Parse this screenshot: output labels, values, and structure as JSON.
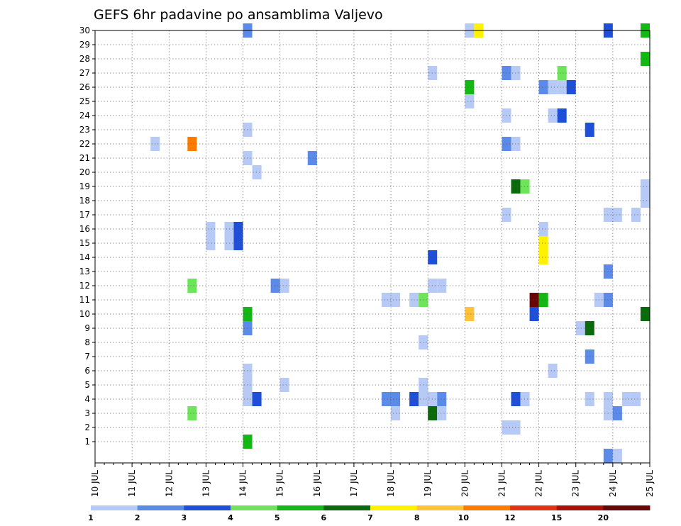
{
  "chart_data": {
    "type": "heatmap",
    "title": "GEFS 6hr padavine po ansamblima Valjevo",
    "x_ticks": [
      "10 JUL",
      "11 JUL",
      "12 JUL",
      "13 JUL",
      "14 JUL",
      "15 JUL",
      "16 JUL",
      "17 JUL",
      "18 JUL",
      "19 JUL",
      "20 JUL",
      "21 JUL",
      "22 JUL",
      "23 JUL",
      "24 JUL",
      "25 JUL"
    ],
    "x_range": [
      "10 JUL 00Z",
      "25 JUL 00Z"
    ],
    "x_step": "6hr",
    "y_ticks": [
      1,
      2,
      3,
      4,
      5,
      6,
      7,
      8,
      9,
      10,
      11,
      12,
      13,
      14,
      15,
      16,
      17,
      18,
      19,
      20,
      21,
      22,
      23,
      24,
      25,
      26,
      27,
      28,
      29,
      30
    ],
    "y_label": "",
    "ylim": [
      0,
      30
    ],
    "grid": "dotted",
    "colorbar": {
      "labels": [
        "1",
        "2",
        "3",
        "4",
        "5",
        "6",
        "7",
        "8",
        "10",
        "12",
        "15",
        "20"
      ],
      "colors": [
        "#b7c9f5",
        "#5c8ae8",
        "#1f4fd8",
        "#6ee45a",
        "#14b814",
        "#0b6a0b",
        "#fff200",
        "#ffc23a",
        "#ff7b00",
        "#e03510",
        "#a8120a",
        "#6a0606"
      ]
    },
    "cells": [
      {
        "t": 4.0,
        "m": 30,
        "c": 2
      },
      {
        "t": 10.0,
        "m": 30,
        "c": 1
      },
      {
        "t": 10.25,
        "m": 30,
        "c": 7
      },
      {
        "t": 13.75,
        "m": 30,
        "c": 3
      },
      {
        "t": 14.75,
        "m": 30,
        "c": 5
      },
      {
        "t": 14.75,
        "m": 28,
        "c": 5
      },
      {
        "t": 9.0,
        "m": 27,
        "c": 1
      },
      {
        "t": 11.0,
        "m": 27,
        "c": 2
      },
      {
        "t": 11.25,
        "m": 27,
        "c": 1
      },
      {
        "t": 12.5,
        "m": 27,
        "c": 4
      },
      {
        "t": 10.0,
        "m": 26,
        "c": 5
      },
      {
        "t": 12.0,
        "m": 26,
        "c": 2
      },
      {
        "t": 12.25,
        "m": 26,
        "c": 1
      },
      {
        "t": 12.5,
        "m": 26,
        "c": 1
      },
      {
        "t": 12.75,
        "m": 26,
        "c": 3
      },
      {
        "t": 10.0,
        "m": 25,
        "c": 1
      },
      {
        "t": 11.0,
        "m": 24,
        "c": 1
      },
      {
        "t": 12.25,
        "m": 24,
        "c": 1
      },
      {
        "t": 12.5,
        "m": 24,
        "c": 3
      },
      {
        "t": 4.0,
        "m": 23,
        "c": 1
      },
      {
        "t": 13.25,
        "m": 23,
        "c": 3
      },
      {
        "t": 1.5,
        "m": 22,
        "c": 1
      },
      {
        "t": 2.5,
        "m": 22,
        "c": 9
      },
      {
        "t": 11.0,
        "m": 22,
        "c": 2
      },
      {
        "t": 11.25,
        "m": 22,
        "c": 1
      },
      {
        "t": 4.0,
        "m": 21,
        "c": 1
      },
      {
        "t": 5.75,
        "m": 21,
        "c": 2
      },
      {
        "t": 4.25,
        "m": 20,
        "c": 1
      },
      {
        "t": 11.25,
        "m": 19,
        "c": 6
      },
      {
        "t": 11.5,
        "m": 19,
        "c": 4
      },
      {
        "t": 14.75,
        "m": 19,
        "c": 1
      },
      {
        "t": 14.75,
        "m": 18,
        "c": 1
      },
      {
        "t": 11.0,
        "m": 17,
        "c": 1
      },
      {
        "t": 13.75,
        "m": 17,
        "c": 1
      },
      {
        "t": 14.0,
        "m": 17,
        "c": 1
      },
      {
        "t": 14.5,
        "m": 17,
        "c": 1
      },
      {
        "t": 3.0,
        "m": 16,
        "c": 1
      },
      {
        "t": 3.5,
        "m": 16,
        "c": 1
      },
      {
        "t": 3.75,
        "m": 16,
        "c": 3
      },
      {
        "t": 12.0,
        "m": 16,
        "c": 1
      },
      {
        "t": 3.0,
        "m": 15,
        "c": 1
      },
      {
        "t": 3.5,
        "m": 15,
        "c": 1
      },
      {
        "t": 3.75,
        "m": 15,
        "c": 3
      },
      {
        "t": 12.0,
        "m": 15,
        "c": 7
      },
      {
        "t": 9.0,
        "m": 14,
        "c": 3
      },
      {
        "t": 12.0,
        "m": 14,
        "c": 7
      },
      {
        "t": 13.75,
        "m": 13,
        "c": 2
      },
      {
        "t": 2.5,
        "m": 12,
        "c": 4
      },
      {
        "t": 4.75,
        "m": 12,
        "c": 2
      },
      {
        "t": 5.0,
        "m": 12,
        "c": 1
      },
      {
        "t": 9.0,
        "m": 12,
        "c": 1
      },
      {
        "t": 9.25,
        "m": 12,
        "c": 1
      },
      {
        "t": 7.75,
        "m": 11,
        "c": 1
      },
      {
        "t": 8.0,
        "m": 11,
        "c": 1
      },
      {
        "t": 8.5,
        "m": 11,
        "c": 1
      },
      {
        "t": 8.75,
        "m": 11,
        "c": 4
      },
      {
        "t": 11.75,
        "m": 11,
        "c": 12
      },
      {
        "t": 12.0,
        "m": 11,
        "c": 5
      },
      {
        "t": 13.5,
        "m": 11,
        "c": 1
      },
      {
        "t": 13.75,
        "m": 11,
        "c": 2
      },
      {
        "t": 4.0,
        "m": 10,
        "c": 5
      },
      {
        "t": 10.0,
        "m": 10,
        "c": 8
      },
      {
        "t": 11.75,
        "m": 10,
        "c": 3
      },
      {
        "t": 14.75,
        "m": 10,
        "c": 6
      },
      {
        "t": 4.0,
        "m": 9,
        "c": 2
      },
      {
        "t": 13.0,
        "m": 9,
        "c": 1
      },
      {
        "t": 13.25,
        "m": 9,
        "c": 6
      },
      {
        "t": 8.75,
        "m": 8,
        "c": 1
      },
      {
        "t": 13.25,
        "m": 7,
        "c": 2
      },
      {
        "t": 4.0,
        "m": 6,
        "c": 1
      },
      {
        "t": 12.25,
        "m": 6,
        "c": 1
      },
      {
        "t": 4.0,
        "m": 5,
        "c": 1
      },
      {
        "t": 5.0,
        "m": 5,
        "c": 1
      },
      {
        "t": 8.75,
        "m": 5,
        "c": 1
      },
      {
        "t": 4.0,
        "m": 4,
        "c": 1
      },
      {
        "t": 4.25,
        "m": 4,
        "c": 3
      },
      {
        "t": 7.75,
        "m": 4,
        "c": 2
      },
      {
        "t": 8.0,
        "m": 4,
        "c": 2
      },
      {
        "t": 8.5,
        "m": 4,
        "c": 3
      },
      {
        "t": 8.75,
        "m": 4,
        "c": 1
      },
      {
        "t": 9.0,
        "m": 4,
        "c": 1
      },
      {
        "t": 9.25,
        "m": 4,
        "c": 2
      },
      {
        "t": 11.25,
        "m": 4,
        "c": 3
      },
      {
        "t": 11.5,
        "m": 4,
        "c": 1
      },
      {
        "t": 13.25,
        "m": 4,
        "c": 1
      },
      {
        "t": 13.75,
        "m": 4,
        "c": 1
      },
      {
        "t": 14.25,
        "m": 4,
        "c": 1
      },
      {
        "t": 14.5,
        "m": 4,
        "c": 1
      },
      {
        "t": 2.5,
        "m": 3,
        "c": 4
      },
      {
        "t": 8.0,
        "m": 3,
        "c": 1
      },
      {
        "t": 9.0,
        "m": 3,
        "c": 6
      },
      {
        "t": 9.25,
        "m": 3,
        "c": 1
      },
      {
        "t": 13.75,
        "m": 3,
        "c": 1
      },
      {
        "t": 14.0,
        "m": 3,
        "c": 2
      },
      {
        "t": 11.0,
        "m": 2,
        "c": 1
      },
      {
        "t": 11.25,
        "m": 2,
        "c": 1
      },
      {
        "t": 4.0,
        "m": 1,
        "c": 5
      },
      {
        "t": 13.75,
        "m": 0,
        "c": 2
      },
      {
        "t": 14.0,
        "m": 0,
        "c": 1
      }
    ]
  }
}
